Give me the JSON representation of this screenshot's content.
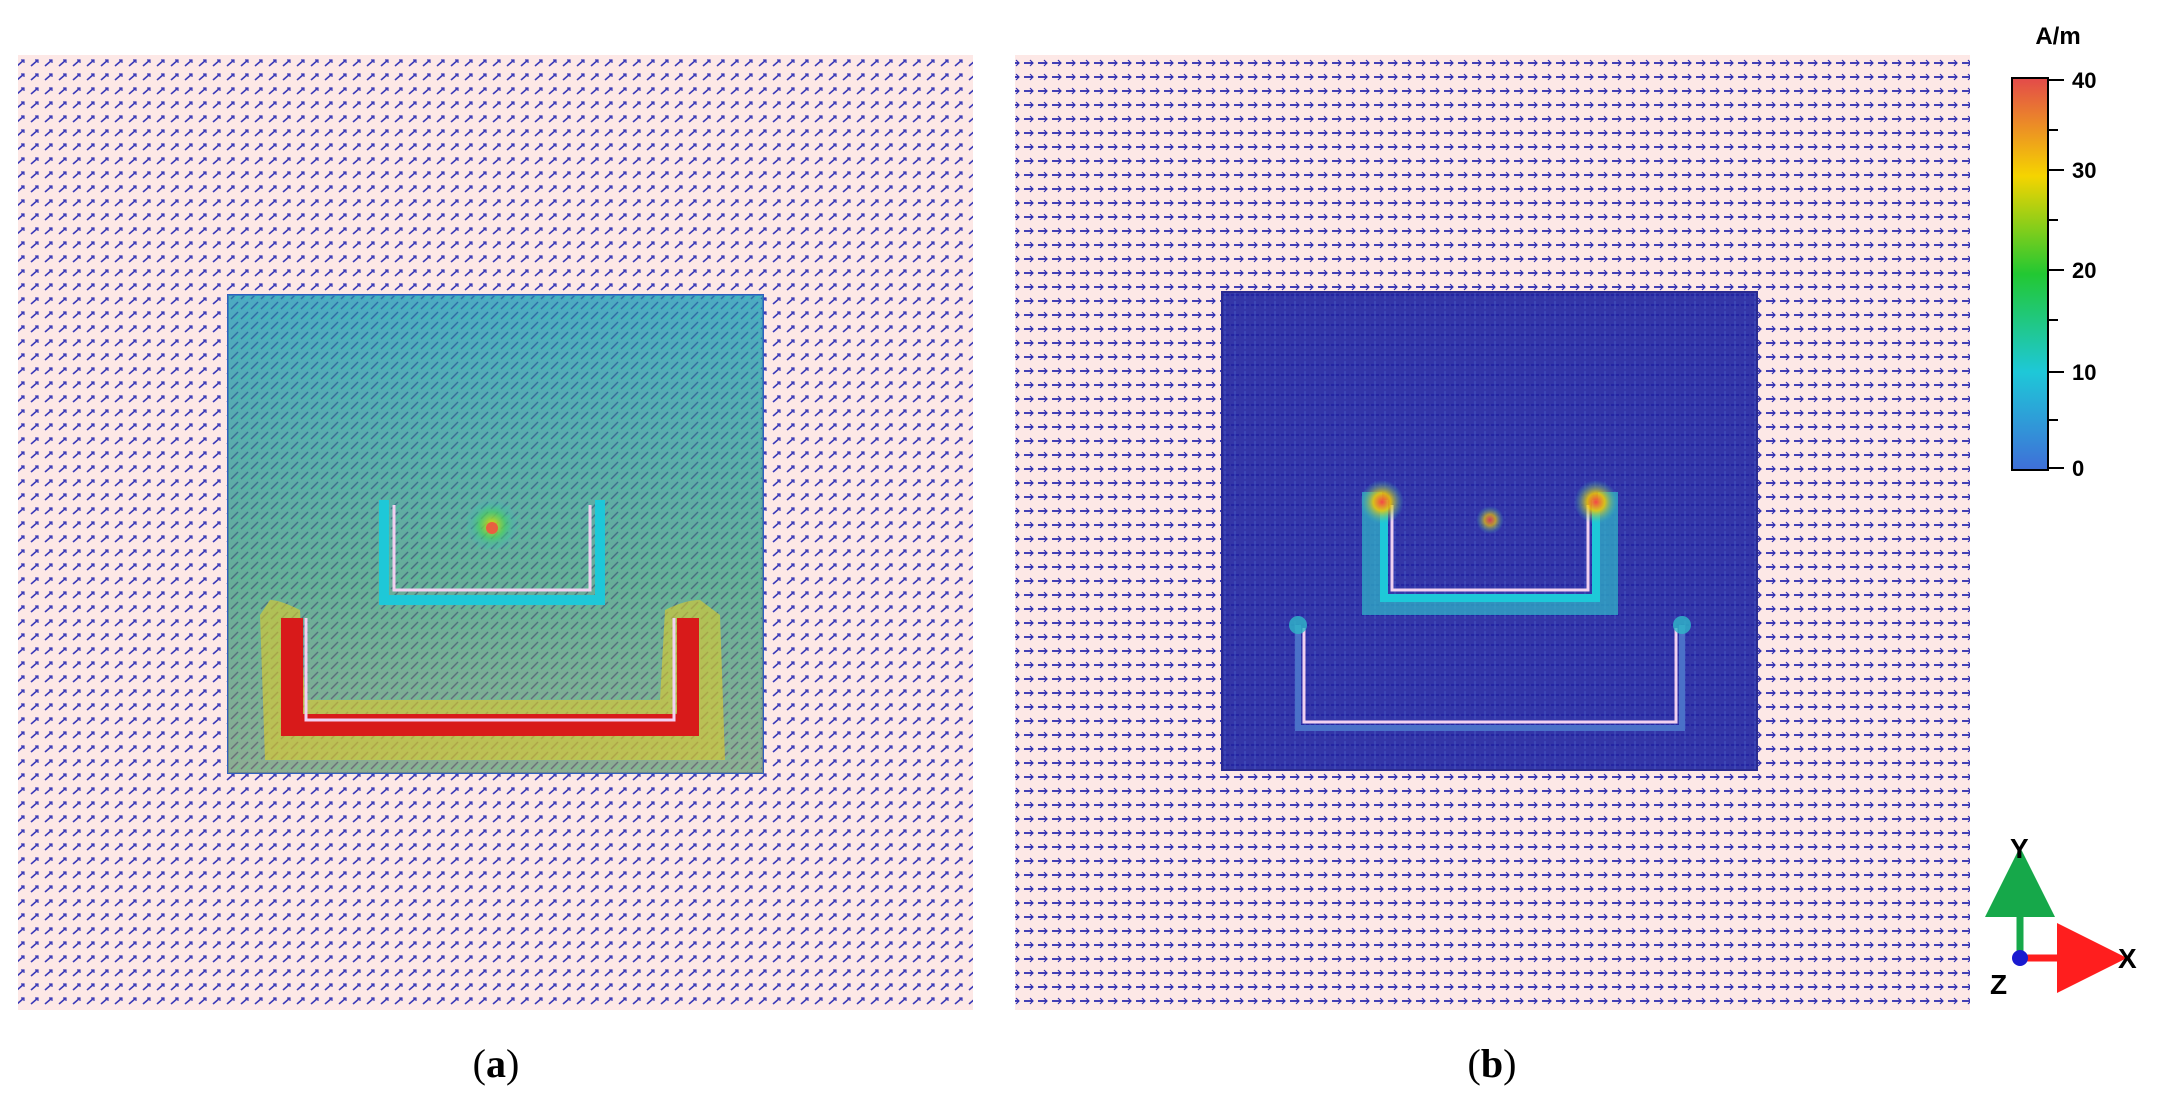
{
  "panels": [
    {
      "id": "a",
      "label": "a"
    },
    {
      "id": "b",
      "label": "b"
    }
  ],
  "colorbar": {
    "unit": "A/m",
    "min": 0,
    "max": 40,
    "ticks": [
      "40",
      "30",
      "20",
      "10",
      "0"
    ],
    "colors": [
      "#e34a4a",
      "#f5d400",
      "#22c832",
      "#1ec8d8",
      "#3f6fd8"
    ]
  },
  "axes": {
    "x": "X",
    "y": "Y",
    "z": "Z"
  },
  "colors": {
    "background": "#fde8e6",
    "arrow": "#3a3ab8",
    "x_axis": "#ff1e1e",
    "y_axis": "#16a84a",
    "z_dot": "#1a1ad0"
  }
}
